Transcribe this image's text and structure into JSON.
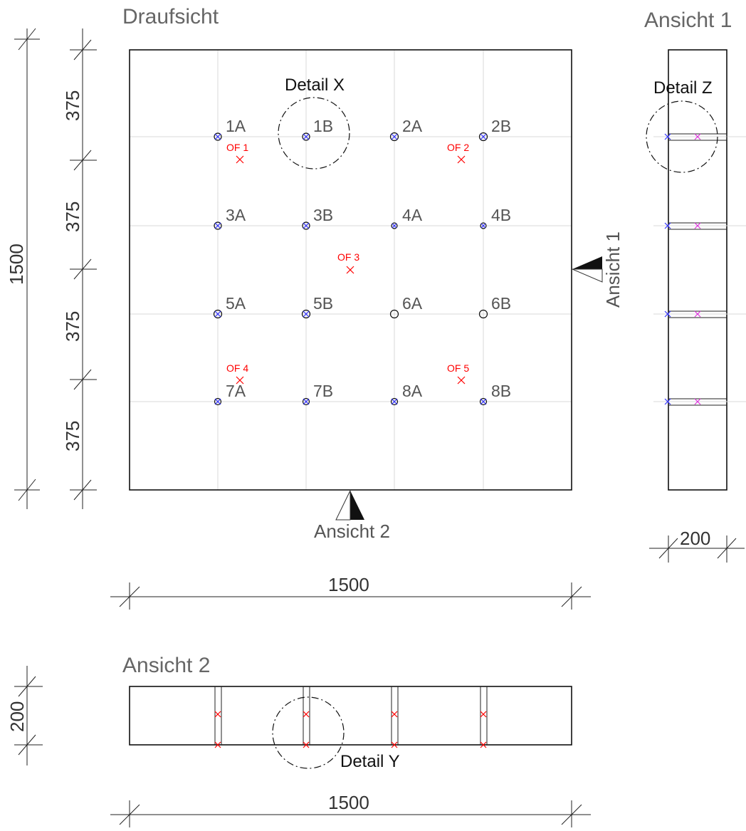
{
  "views": {
    "top": "Draufsicht",
    "side1": "Ansicht 1",
    "side2": "Ansicht 2"
  },
  "dimensions": {
    "segment": "375",
    "total": "1500",
    "thickness": "200"
  },
  "section_markers": {
    "ansicht1": "Ansicht 1",
    "ansicht2": "Ansicht 2"
  },
  "details": {
    "x": "Detail X",
    "y": "Detail Y",
    "z": "Detail Z"
  },
  "points": [
    "1A",
    "1B",
    "2A",
    "2B",
    "3A",
    "3B",
    "4A",
    "4B",
    "5A",
    "5B",
    "6A",
    "6B",
    "7A",
    "7B",
    "8A",
    "8B"
  ],
  "openings": [
    "OF 1",
    "OF 2",
    "OF 3",
    "OF 4",
    "OF 5"
  ],
  "colors": {
    "opening": "#ff0000",
    "point_mark": "#3333ff",
    "side_mark": "#dd33dd"
  }
}
